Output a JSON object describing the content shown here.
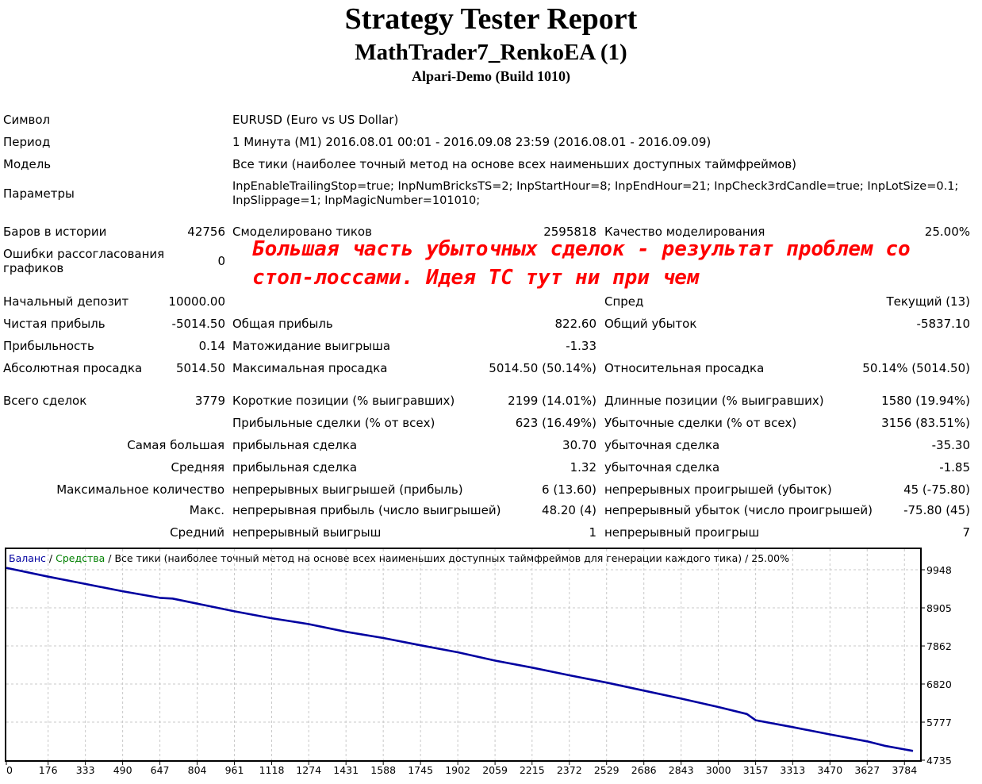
{
  "header": {
    "title": "Strategy Tester Report",
    "expert": "MathTrader7_RenkoEA (1)",
    "server": "Alpari-Demo (Build 1010)"
  },
  "info": {
    "symbol_label": "Символ",
    "symbol_value": "EURUSD (Euro vs US Dollar)",
    "period_label": "Период",
    "period_value": "1 Минута (M1) 2016.08.01 00:01 - 2016.09.08 23:59 (2016.08.01 - 2016.09.09)",
    "model_label": "Модель",
    "model_value": "Все тики (наиболее точный метод на основе всех наименьших доступных таймфреймов)",
    "params_label": "Параметры",
    "params_value": "InpEnableTrailingStop=true; InpNumBricksTS=2; InpStartHour=8; InpEndHour=21; InpCheck3rdCandle=true; InpLotSize=0.1; InpSlippage=1; InpMagicNumber=101010;"
  },
  "stats": {
    "bars_label": "Баров в истории",
    "bars_value": "42756",
    "ticks_label": "Смоделировано тиков",
    "ticks_value": "2595818",
    "quality_label": "Качество моделирования",
    "quality_value": "25.00%",
    "mismatch_label": "Ошибки рассогласования графиков",
    "mismatch_value": "0",
    "deposit_label": "Начальный депозит",
    "deposit_value": "10000.00",
    "spread_label": "Спред",
    "spread_value": "Текущий (13)",
    "net_label": "Чистая прибыль",
    "net_value": "-5014.50",
    "gross_profit_label": "Общая прибыль",
    "gross_profit_value": "822.60",
    "gross_loss_label": "Общий убыток",
    "gross_loss_value": "-5837.10",
    "pf_label": "Прибыльность",
    "pf_value": "0.14",
    "expected_label": "Матожидание выигрыша",
    "expected_value": "-1.33",
    "abs_dd_label": "Абсолютная просадка",
    "abs_dd_value": "5014.50",
    "max_dd_label": "Максимальная просадка",
    "max_dd_value": "5014.50 (50.14%)",
    "rel_dd_label": "Относительная просадка",
    "rel_dd_value": "50.14% (5014.50)",
    "trades_label": "Всего сделок",
    "trades_value": "3779",
    "short_label": "Короткие позиции (% выигравших)",
    "short_value": "2199 (14.01%)",
    "long_label": "Длинные позиции (% выигравших)",
    "long_value": "1580 (19.94%)",
    "profit_trades_label": "Прибыльные сделки (% от всех)",
    "profit_trades_value": "623 (16.49%)",
    "loss_trades_label": "Убыточные сделки (% от всех)",
    "loss_trades_value": "3156 (83.51%)",
    "largest_label": "Самая большая",
    "largest_profit_label": "прибыльная сделка",
    "largest_profit_value": "30.70",
    "largest_loss_label": "убыточная сделка",
    "largest_loss_value": "-35.30",
    "average_label": "Средняя",
    "average_profit_label": "прибыльная сделка",
    "average_profit_value": "1.32",
    "average_loss_label": "убыточная сделка",
    "average_loss_value": "-1.85",
    "max_count_label": "Максимальное количество",
    "max_wins_label": "непрерывных выигрышей (прибыль)",
    "max_wins_value": "6 (13.60)",
    "max_losses_label": "непрерывных проигрышей (убыток)",
    "max_losses_value": "45 (-75.80)",
    "max_label": "Макс.",
    "max_profit_label": "непрерывная прибыль (число выигрышей)",
    "max_profit_value": "48.20 (4)",
    "max_loss_label": "непрерывный убыток (число проигрышей)",
    "max_loss_value": "-75.80 (45)",
    "avg_label": "Средний",
    "avg_win_label": "непрерывный выигрыш",
    "avg_win_value": "1",
    "avg_loss_label": "непрерывный проигрыш",
    "avg_loss_value": "7"
  },
  "annotation": "Большая часть убыточных сделок - результат проблем со стоп-лоссами. Идея ТС тут ни при чем",
  "chart_data": {
    "type": "line",
    "legend": {
      "balance": "Баланс",
      "sep1": " / ",
      "equity": "Средства",
      "sep2": " / ",
      "desc": "Все тики (наиболее точный метод на основе всех наименьших доступных таймфреймов для генерации каждого тика)",
      "sep3": " / ",
      "quality": "25.00%"
    },
    "colors": {
      "balance": "#0000a0",
      "equity": "#008000",
      "grid": "#c8c8c8"
    },
    "x_ticks": [
      0,
      176,
      333,
      490,
      647,
      804,
      961,
      1118,
      1274,
      1431,
      1588,
      1745,
      1902,
      2059,
      2215,
      2372,
      2529,
      2686,
      2843,
      3000,
      3157,
      3313,
      3470,
      3627,
      3784
    ],
    "y_ticks": [
      9948,
      8905,
      7862,
      6820,
      5777,
      4735
    ],
    "xlim": [
      0,
      3850
    ],
    "ylim": [
      4735,
      10400
    ],
    "grid": true,
    "series": [
      {
        "name": "Баланс",
        "x": [
          0,
          176,
          333,
          490,
          647,
          700,
          804,
          961,
          1118,
          1274,
          1431,
          1588,
          1745,
          1902,
          2059,
          2215,
          2372,
          2529,
          2686,
          2843,
          3000,
          3120,
          3157,
          3313,
          3470,
          3627,
          3700,
          3784,
          3820
        ],
        "y": [
          10000,
          9760,
          9560,
          9360,
          9180,
          9160,
          9020,
          8810,
          8620,
          8460,
          8250,
          8080,
          7880,
          7690,
          7460,
          7270,
          7060,
          6860,
          6640,
          6420,
          6190,
          6000,
          5830,
          5640,
          5440,
          5250,
          5130,
          5030,
          4990
        ]
      }
    ]
  }
}
